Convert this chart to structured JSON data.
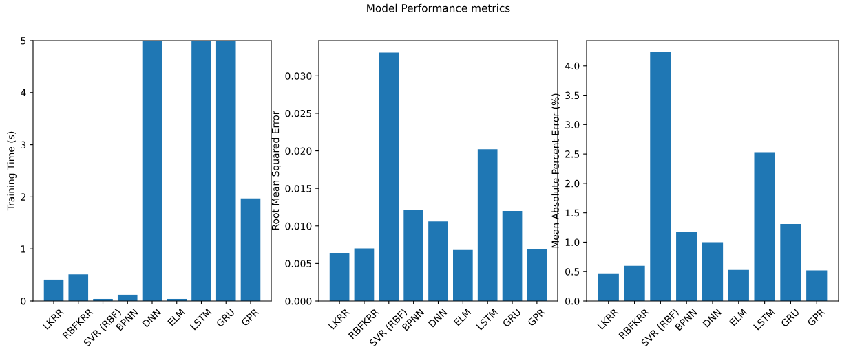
{
  "chart_data": [
    {
      "type": "bar",
      "ylabel": "Training Time (s)",
      "categories": [
        "LKRR",
        "RBFKRR",
        "SVR (RBF)",
        "BPNN",
        "DNN",
        "ELM",
        "LSTM",
        "GRU",
        "GPR"
      ],
      "values": [
        0.41,
        0.51,
        0.04,
        0.12,
        5,
        0.04,
        5,
        5,
        1.97
      ],
      "color": "#1f77b4",
      "ylim": [
        0,
        5
      ],
      "yticks": [
        0,
        1,
        2,
        3,
        4,
        5
      ],
      "grid": false
    },
    {
      "type": "bar",
      "title": "Model Performance metrics",
      "ylabel": "Root Mean Squared Error",
      "categories": [
        "LKRR",
        "RBFKRR",
        "SVR (RBF)",
        "BPNN",
        "DNN",
        "ELM",
        "LSTM",
        "GRU",
        "GPR"
      ],
      "values": [
        0.0064,
        0.007,
        0.0331,
        0.0121,
        0.0106,
        0.0068,
        0.0202,
        0.012,
        0.0069
      ],
      "color": "#1f77b4",
      "ylim": [
        0,
        0.0347
      ],
      "yticks": [
        {
          "value": 0,
          "label": "0.000"
        },
        {
          "value": 0.005,
          "label": "0.005"
        },
        {
          "value": 0.01,
          "label": "0.010"
        },
        {
          "value": 0.015,
          "label": "0.015"
        },
        {
          "value": 0.02,
          "label": "0.020"
        },
        {
          "value": 0.025,
          "label": "0.025"
        },
        {
          "value": 0.03,
          "label": "0.030"
        }
      ],
      "grid": false
    },
    {
      "type": "bar",
      "ylabel": "Mean Absolute Percent Error (%)",
      "categories": [
        "LKRR",
        "RBFKRR",
        "SVR (RBF)",
        "BPNN",
        "DNN",
        "ELM",
        "LSTM",
        "GRU",
        "GPR"
      ],
      "values": [
        0.46,
        0.6,
        4.23,
        1.18,
        1.0,
        0.53,
        2.53,
        1.31,
        0.52
      ],
      "color": "#1f77b4",
      "ylim": [
        0,
        4.43
      ],
      "yticks": [
        {
          "value": 0,
          "label": "0.0"
        },
        {
          "value": 0.5,
          "label": "0.5"
        },
        {
          "value": 1,
          "label": "1.0"
        },
        {
          "value": 1.5,
          "label": "1.5"
        },
        {
          "value": 2,
          "label": "2.0"
        },
        {
          "value": 2.5,
          "label": "2.5"
        },
        {
          "value": 3,
          "label": "3.0"
        },
        {
          "value": 3.5,
          "label": "3.5"
        },
        {
          "value": 4,
          "label": "4.0"
        }
      ],
      "grid": false
    }
  ]
}
